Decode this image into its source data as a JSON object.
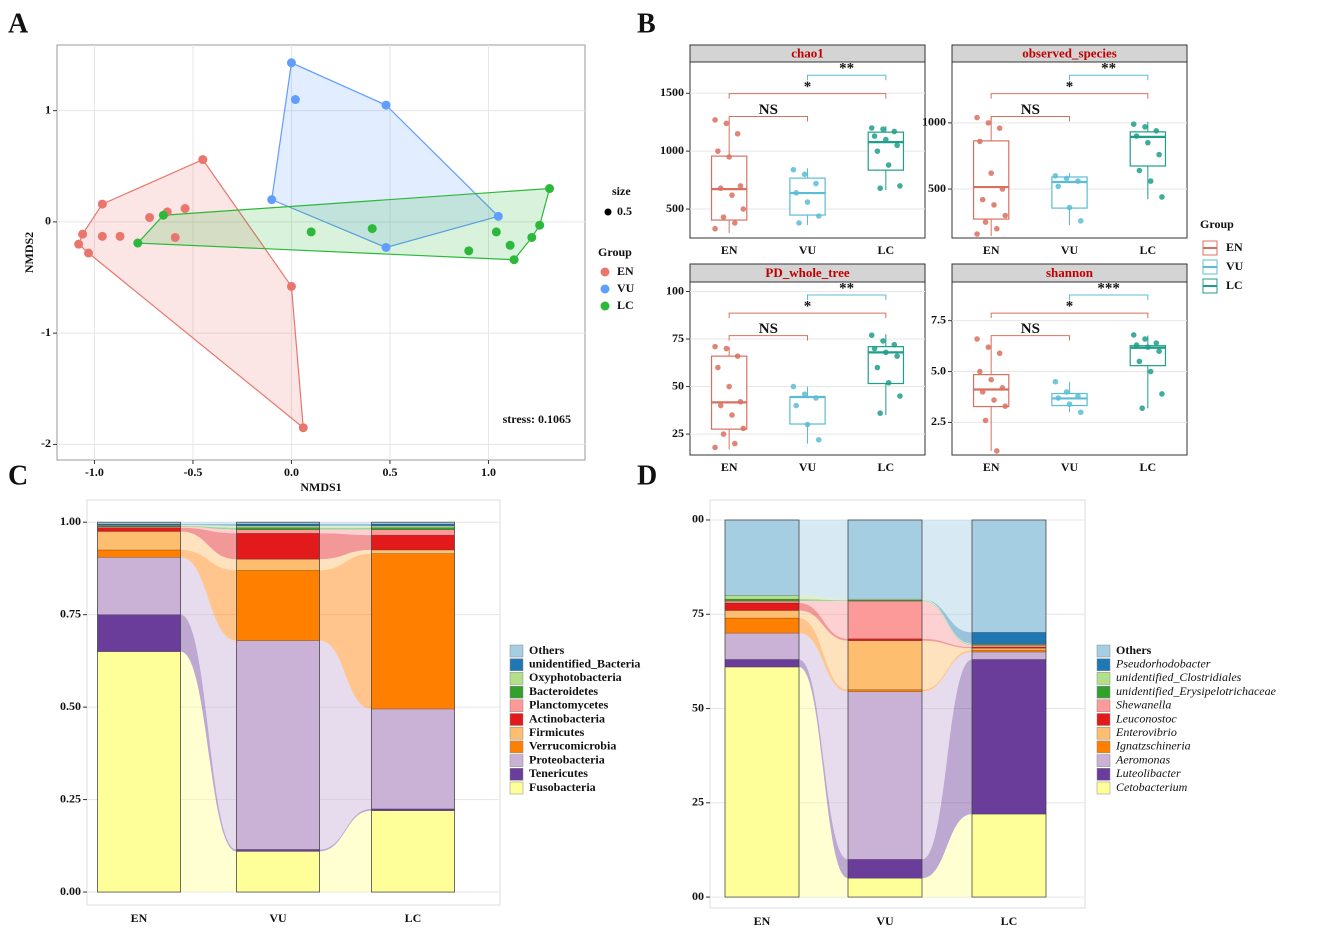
{
  "chart_data": [
    {
      "type": "scatter",
      "label": "A",
      "xlabel": "NMDS1",
      "ylabel": "NMDS2",
      "xlim": [
        -1.19,
        1.49
      ],
      "ylim": [
        -2.14,
        1.59
      ],
      "xticks": [
        {
          "value": -1,
          "label": "-1.0"
        },
        -0.5,
        {
          "value": 0,
          "label": "0.0"
        },
        0.5,
        {
          "value": 1,
          "label": "1.0"
        }
      ],
      "yticks": [
        -2,
        -1,
        0,
        1
      ],
      "grid": true,
      "annotation": "stress: 0.1065",
      "size_legend": {
        "title": "size",
        "value": 0.5
      },
      "legend_title": "Group",
      "series": [
        {
          "name": "EN",
          "color": "#e8766d",
          "x": [
            -0.45,
            -0.96,
            -0.54,
            -0.63,
            -0.72,
            -0.87,
            -0.96,
            -1.06,
            -1.08,
            -1.03,
            -0.59,
            0.0,
            0.06
          ],
          "y": [
            0.56,
            0.16,
            0.12,
            0.09,
            0.04,
            -0.13,
            -0.13,
            -0.11,
            -0.2,
            -0.28,
            -0.14,
            -0.58,
            -1.85
          ]
        },
        {
          "name": "VU",
          "color": "#619cff",
          "x": [
            0.0,
            0.02,
            0.48,
            -0.1,
            0.48,
            1.05
          ],
          "y": [
            1.43,
            1.1,
            1.05,
            0.2,
            -0.23,
            0.05
          ]
        },
        {
          "name": "LC",
          "color": "#2cb83a",
          "x": [
            1.31,
            -0.65,
            -0.78,
            0.1,
            0.41,
            0.9,
            1.04,
            1.11,
            1.13,
            1.22,
            1.26
          ],
          "y": [
            0.3,
            0.06,
            -0.19,
            -0.09,
            -0.06,
            -0.26,
            -0.09,
            -0.21,
            -0.34,
            -0.14,
            -0.03
          ]
        }
      ]
    },
    {
      "type": "box",
      "label": "B",
      "title": "chao1",
      "categories": [
        "EN",
        "VU",
        "LC"
      ],
      "colors": [
        "#d9705f",
        "#5bbcd6",
        "#1f9e89"
      ],
      "legend_title": "Group",
      "ylim": [
        250,
        1770
      ],
      "yticks": [
        500,
        1000,
        1500
      ],
      "boxes": [
        {
          "min": 293,
          "q1": 405,
          "median": 672,
          "q3": 957,
          "max": 1267
        },
        {
          "min": 362,
          "q1": 448,
          "median": 638,
          "q3": 767,
          "max": 853
        },
        {
          "min": 664,
          "q1": 836,
          "median": 1078,
          "q3": 1164,
          "max": 1216
        }
      ],
      "points": [
        [
          1270,
          1240,
          1150,
          1000,
          950,
          700,
          680,
          620,
          500,
          430,
          380,
          330
        ],
        [
          840,
          800,
          720,
          640,
          560,
          440,
          380
        ],
        [
          1200,
          1190,
          1170,
          1130,
          1100,
          1050,
          1000,
          880,
          700,
          680
        ]
      ],
      "comparisons": [
        {
          "pair": [
            "EN",
            "VU"
          ],
          "label": "NS"
        },
        {
          "pair": [
            "EN",
            "LC"
          ],
          "label": "*"
        },
        {
          "pair": [
            "VU",
            "LC"
          ],
          "label": "**"
        }
      ]
    },
    {
      "type": "box",
      "title": "observed_species",
      "categories": [
        "EN",
        "VU",
        "LC"
      ],
      "colors": [
        "#d9705f",
        "#5bbcd6",
        "#1f9e89"
      ],
      "ylim": [
        130,
        1460
      ],
      "yticks": [
        500,
        1000
      ],
      "boxes": [
        {
          "min": 144,
          "q1": 273,
          "median": 515,
          "q3": 864,
          "max": 1045
        },
        {
          "min": 227,
          "q1": 356,
          "median": 553,
          "q3": 591,
          "max": 621
        },
        {
          "min": 424,
          "q1": 674,
          "median": 894,
          "q3": 932,
          "max": 1008
        }
      ],
      "points": [
        [
          1040,
          1000,
          960,
          860,
          620,
          500,
          420,
          380,
          300,
          250,
          200,
          160
        ],
        [
          600,
          580,
          560,
          520,
          360,
          260
        ],
        [
          990,
          970,
          940,
          900,
          850,
          760,
          640,
          560,
          440
        ]
      ],
      "comparisons": [
        {
          "pair": [
            "EN",
            "VU"
          ],
          "label": "NS"
        },
        {
          "pair": [
            "EN",
            "LC"
          ],
          "label": "*"
        },
        {
          "pair": [
            "VU",
            "LC"
          ],
          "label": "**"
        }
      ]
    },
    {
      "type": "box",
      "title": "PD_whole_tree",
      "categories": [
        "EN",
        "VU",
        "LC"
      ],
      "colors": [
        "#d9705f",
        "#5bbcd6",
        "#1f9e89"
      ],
      "ylim": [
        14,
        105
      ],
      "yticks": [
        25,
        50,
        75,
        100
      ],
      "boxes": [
        {
          "min": 17,
          "q1": 27.6,
          "median": 41.7,
          "q3": 66,
          "max": 71
        },
        {
          "min": 20,
          "q1": 30.3,
          "median": 44.5,
          "q3": 44.5,
          "max": 50
        },
        {
          "min": 35,
          "q1": 51.6,
          "median": 68,
          "q3": 71,
          "max": 77.5
        }
      ],
      "points": [
        [
          71,
          70,
          66,
          60,
          50,
          42,
          40,
          35,
          28,
          25,
          20,
          18
        ],
        [
          50,
          46,
          44,
          40,
          30,
          22
        ],
        [
          77,
          74,
          72,
          70,
          68,
          66,
          60,
          52,
          45,
          36
        ]
      ],
      "comparisons": [
        {
          "pair": [
            "EN",
            "VU"
          ],
          "label": "NS"
        },
        {
          "pair": [
            "EN",
            "LC"
          ],
          "label": "*"
        },
        {
          "pair": [
            "VU",
            "LC"
          ],
          "label": "**"
        }
      ]
    },
    {
      "type": "box",
      "title": "shannon",
      "categories": [
        "EN",
        "VU",
        "LC"
      ],
      "colors": [
        "#d9705f",
        "#5bbcd6",
        "#1f9e89"
      ],
      "ylim": [
        0.9,
        9.4
      ],
      "yticks": [
        2.5,
        {
          "value": 5,
          "label": "5.0"
        },
        7.5
      ],
      "boxes": [
        {
          "min": 1.1,
          "q1": 3.28,
          "median": 4.12,
          "q3": 4.85,
          "max": 6.6
        },
        {
          "min": 3.0,
          "q1": 3.33,
          "median": 3.68,
          "q3": 3.92,
          "max": 4.5
        },
        {
          "min": 3.19,
          "q1": 5.29,
          "median": 6.17,
          "q3": 6.27,
          "max": 6.77
        }
      ],
      "points": [
        [
          6.6,
          6.2,
          5.9,
          5.0,
          4.6,
          4.2,
          4.0,
          3.6,
          3.3,
          2.6,
          1.1
        ],
        [
          4.5,
          4.0,
          3.8,
          3.7,
          3.4,
          3.0
        ],
        [
          6.8,
          6.6,
          6.4,
          6.3,
          6.2,
          6.0,
          5.5,
          5.0,
          3.9,
          3.2
        ]
      ],
      "comparisons": [
        {
          "pair": [
            "EN",
            "VU"
          ],
          "label": "NS"
        },
        {
          "pair": [
            "EN",
            "LC"
          ],
          "label": "*"
        },
        {
          "pair": [
            "VU",
            "LC"
          ],
          "label": "***"
        }
      ]
    },
    {
      "type": "alluvial",
      "label": "C",
      "categories": [
        "EN",
        "VU",
        "LC"
      ],
      "ylim": [
        -0.035,
        1.06
      ],
      "yticks": [
        {
          "value": 0,
          "label": "0.00"
        },
        0.25,
        {
          "value": 0.5,
          "label": "0.50"
        },
        0.75,
        {
          "value": 1,
          "label": "1.00"
        }
      ],
      "grid": true,
      "series": [
        {
          "name": "Fusobacteria",
          "color": "#ffff99",
          "values": [
            0.65,
            0.11,
            0.22
          ]
        },
        {
          "name": "Tenericutes",
          "color": "#6a3d9a",
          "values": [
            0.1,
            0.005,
            0.005
          ]
        },
        {
          "name": "Proteobacteria",
          "color": "#cab2d6",
          "values": [
            0.155,
            0.565,
            0.27
          ]
        },
        {
          "name": "Verrucomicrobia",
          "color": "#ff7f00",
          "values": [
            0.02,
            0.19,
            0.42
          ]
        },
        {
          "name": "Firmicutes",
          "color": "#fdbf6f",
          "values": [
            0.05,
            0.03,
            0.01
          ]
        },
        {
          "name": "Actinobacteria",
          "color": "#e31a1c",
          "values": [
            0.01,
            0.07,
            0.04
          ]
        },
        {
          "name": "Planctomycetes",
          "color": "#fb9a99",
          "values": [
            0.003,
            0.01,
            0.015
          ]
        },
        {
          "name": "Bacteroidetes",
          "color": "#33a02c",
          "values": [
            0.002,
            0.005,
            0.005
          ]
        },
        {
          "name": "Oxyphotobacteria",
          "color": "#b2df8a",
          "values": [
            0.002,
            0.005,
            0.005
          ]
        },
        {
          "name": "unidentified_Bacteria",
          "color": "#1f78b4",
          "values": [
            0.003,
            0.005,
            0.005
          ]
        },
        {
          "name": "Others",
          "color": "#a6cee3",
          "values": [
            0.005,
            0.005,
            0.005
          ]
        }
      ]
    },
    {
      "type": "alluvial",
      "label": "D",
      "categories": [
        "EN",
        "VU",
        "LC"
      ],
      "ylim": [
        -2.9,
        105.3
      ],
      "yticks": [
        {
          "value": 0,
          "label": "00"
        },
        25,
        50,
        75,
        {
          "value": 100,
          "label": "00"
        }
      ],
      "grid": true,
      "series": [
        {
          "name": "Cetobacterium",
          "italic": true,
          "color": "#ffff99",
          "values": [
            61,
            5,
            22
          ]
        },
        {
          "name": "Luteolibacter",
          "italic": true,
          "color": "#6a3d9a",
          "values": [
            2,
            5,
            41
          ]
        },
        {
          "name": "Aeromonas",
          "italic": true,
          "color": "#cab2d6",
          "values": [
            7,
            44.5,
            2
          ]
        },
        {
          "name": "Ignatzschineria",
          "italic": true,
          "color": "#ff7f00",
          "values": [
            4,
            0.5,
            0.5
          ]
        },
        {
          "name": "Enterovibrio",
          "italic": true,
          "color": "#fdbf6f",
          "values": [
            2,
            13,
            0.5
          ]
        },
        {
          "name": "Leuconostoc",
          "italic": true,
          "color": "#e31a1c",
          "values": [
            2,
            0.5,
            0.3
          ]
        },
        {
          "name": "Shewanella",
          "italic": true,
          "color": "#fb9a99",
          "values": [
            0.5,
            10,
            0.5
          ]
        },
        {
          "name": "unidentified_Erysipelotrichaceae",
          "italic": true,
          "color": "#33a02c",
          "values": [
            0.5,
            0.2,
            0.2
          ]
        },
        {
          "name": "unidentified_Clostridiales",
          "italic": true,
          "color": "#b2df8a",
          "values": [
            1,
            0.3,
            0.2
          ]
        },
        {
          "name": "Pseudorhodobacter",
          "italic": true,
          "color": "#1f78b4",
          "values": [
            0,
            0,
            3
          ]
        },
        {
          "name": "Others",
          "color": "#a6cee3",
          "values": [
            20,
            21,
            29.8
          ]
        }
      ]
    }
  ]
}
